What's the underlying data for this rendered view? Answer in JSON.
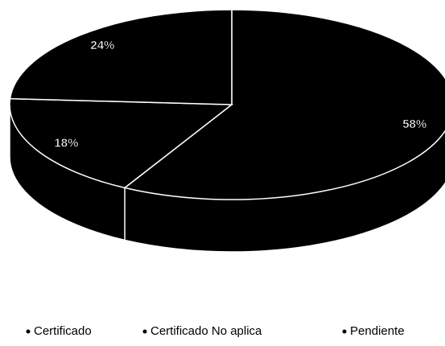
{
  "chart_data": {
    "type": "pie",
    "categories": [
      "Certificado",
      "Certificado No aplica",
      "Pendiente"
    ],
    "values": [
      58,
      18,
      24
    ],
    "value_labels": [
      "58%",
      "18%",
      "24%"
    ],
    "color": "#000000",
    "legend": "bottom"
  }
}
